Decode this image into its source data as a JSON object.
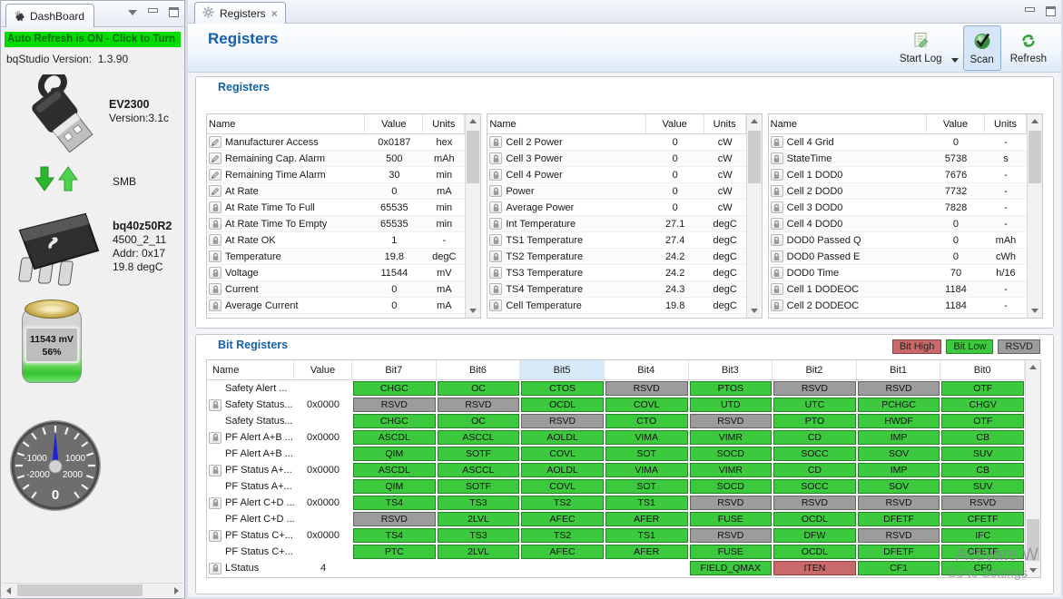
{
  "colors": {
    "accent_blue": "#1461AE",
    "bit_low_green": "#3DC93D",
    "bit_high_red": "#C9696B",
    "bit_rsvd_gray": "#9C9C9C",
    "banner_green": "#00DC00"
  },
  "dashboard": {
    "tab_label": "DashBoard",
    "banner_text": "Auto Refresh is ON - Click to Turn",
    "version_label": "bqStudio Version:",
    "version_value": "1.3.90",
    "adapter_name": "EV2300",
    "adapter_version": "Version:3.1c",
    "bus_label": "SMB",
    "device_name": "bq40z50R2",
    "device_firmware": "4500_2_11",
    "device_address": "Addr: 0x17",
    "device_temp": "19.8 degC",
    "battery_voltage": "11543 mV",
    "battery_soc": "56%",
    "gauge": {
      "labels": [
        "-1000",
        "1000",
        "-2000",
        "2000"
      ],
      "value": "0"
    }
  },
  "main": {
    "tab_label": "Registers",
    "page_title": "Registers",
    "toolbar": {
      "start_log_label": "Start Log",
      "scan_label": "Scan",
      "refresh_label": "Refresh"
    },
    "registers": {
      "section_label": "Registers",
      "columns": [
        "Name",
        "Value",
        "Units"
      ],
      "tables": [
        {
          "rows": [
            {
              "icon": "pencil",
              "name": "Manufacturer Access",
              "value": "0x0187",
              "units": "hex"
            },
            {
              "icon": "pencil",
              "name": "Remaining Cap. Alarm",
              "value": "500",
              "units": "mAh"
            },
            {
              "icon": "pencil",
              "name": "Remaining Time Alarm",
              "value": "30",
              "units": "min"
            },
            {
              "icon": "pencil",
              "name": "At Rate",
              "value": "0",
              "units": "mA"
            },
            {
              "icon": "lock",
              "name": "At Rate Time To Full",
              "value": "65535",
              "units": "min"
            },
            {
              "icon": "lock",
              "name": "At Rate Time To Empty",
              "value": "65535",
              "units": "min"
            },
            {
              "icon": "lock",
              "name": "At Rate OK",
              "value": "1",
              "units": "-"
            },
            {
              "icon": "lock",
              "name": "Temperature",
              "value": "19.8",
              "units": "degC"
            },
            {
              "icon": "lock",
              "name": "Voltage",
              "value": "11544",
              "units": "mV"
            },
            {
              "icon": "lock",
              "name": "Current",
              "value": "0",
              "units": "mA"
            },
            {
              "icon": "lock",
              "name": "Average Current",
              "value": "0",
              "units": "mA"
            }
          ]
        },
        {
          "rows": [
            {
              "icon": "lock",
              "name": "Cell 2 Power",
              "value": "0",
              "units": "cW"
            },
            {
              "icon": "lock",
              "name": "Cell 3 Power",
              "value": "0",
              "units": "cW"
            },
            {
              "icon": "lock",
              "name": "Cell 4 Power",
              "value": "0",
              "units": "cW"
            },
            {
              "icon": "lock",
              "name": "Power",
              "value": "0",
              "units": "cW"
            },
            {
              "icon": "lock",
              "name": "Average Power",
              "value": "0",
              "units": "cW"
            },
            {
              "icon": "lock",
              "name": "Int Temperature",
              "value": "27.1",
              "units": "degC"
            },
            {
              "icon": "lock",
              "name": "TS1 Temperature",
              "value": "27.4",
              "units": "degC"
            },
            {
              "icon": "lock",
              "name": "TS2 Temperature",
              "value": "24.2",
              "units": "degC"
            },
            {
              "icon": "lock",
              "name": "TS3 Temperature",
              "value": "24.2",
              "units": "degC"
            },
            {
              "icon": "lock",
              "name": "TS4 Temperature",
              "value": "24.3",
              "units": "degC"
            },
            {
              "icon": "lock",
              "name": "Cell Temperature",
              "value": "19.8",
              "units": "degC"
            }
          ]
        },
        {
          "rows": [
            {
              "icon": "lock",
              "name": "Cell 4 Grid",
              "value": "0",
              "units": "-"
            },
            {
              "icon": "lock",
              "name": "StateTime",
              "value": "5738",
              "units": "s"
            },
            {
              "icon": "lock",
              "name": "Cell 1 DOD0",
              "value": "7676",
              "units": "-"
            },
            {
              "icon": "lock",
              "name": "Cell 2 DOD0",
              "value": "7732",
              "units": "-"
            },
            {
              "icon": "lock",
              "name": "Cell 3 DOD0",
              "value": "7828",
              "units": "-"
            },
            {
              "icon": "lock",
              "name": "Cell 4 DOD0",
              "value": "0",
              "units": "-"
            },
            {
              "icon": "lock",
              "name": "DOD0 Passed Q",
              "value": "0",
              "units": "mAh"
            },
            {
              "icon": "lock",
              "name": "DOD0 Passed E",
              "value": "0",
              "units": "cWh"
            },
            {
              "icon": "lock",
              "name": "DOD0 Time",
              "value": "70",
              "units": "h/16"
            },
            {
              "icon": "lock",
              "name": "Cell 1 DODEOC",
              "value": "1184",
              "units": "-"
            },
            {
              "icon": "lock",
              "name": "Cell 2 DODEOC",
              "value": "1184",
              "units": "-"
            }
          ]
        }
      ]
    },
    "bit_registers": {
      "section_label": "Bit Registers",
      "legend": [
        {
          "label": "Bit High",
          "state": "high"
        },
        {
          "label": "Bit Low",
          "state": "low"
        },
        {
          "label": "RSVD",
          "state": "rsvd"
        }
      ],
      "columns": [
        "Name",
        "Value",
        "Bit7",
        "Bit6",
        "Bit5",
        "Bit4",
        "Bit3",
        "Bit2",
        "Bit1",
        "Bit0"
      ],
      "selected_column": "Bit5",
      "rows": [
        {
          "icon": "",
          "name": "Safety Alert ...",
          "value": "",
          "bits": [
            {
              "t": "CHGC",
              "s": "low"
            },
            {
              "t": "OC",
              "s": "low"
            },
            {
              "t": "CTOS",
              "s": "low"
            },
            {
              "t": "RSVD",
              "s": "rsvd"
            },
            {
              "t": "PTOS",
              "s": "low"
            },
            {
              "t": "RSVD",
              "s": "rsvd"
            },
            {
              "t": "RSVD",
              "s": "rsvd"
            },
            {
              "t": "OTF",
              "s": "low"
            }
          ]
        },
        {
          "icon": "lock",
          "name": "Safety Status...",
          "value": "0x0000",
          "bits": [
            {
              "t": "RSVD",
              "s": "rsvd"
            },
            {
              "t": "RSVD",
              "s": "rsvd"
            },
            {
              "t": "OCDL",
              "s": "low"
            },
            {
              "t": "COVL",
              "s": "low"
            },
            {
              "t": "UTD",
              "s": "low"
            },
            {
              "t": "UTC",
              "s": "low"
            },
            {
              "t": "PCHGC",
              "s": "low"
            },
            {
              "t": "CHGV",
              "s": "low"
            }
          ]
        },
        {
          "icon": "",
          "name": "Safety Status...",
          "value": "",
          "bits": [
            {
              "t": "CHGC",
              "s": "low"
            },
            {
              "t": "OC",
              "s": "low"
            },
            {
              "t": "RSVD",
              "s": "rsvd"
            },
            {
              "t": "CTO",
              "s": "low"
            },
            {
              "t": "RSVD",
              "s": "rsvd"
            },
            {
              "t": "PTO",
              "s": "low"
            },
            {
              "t": "HWDF",
              "s": "low"
            },
            {
              "t": "OTF",
              "s": "low"
            }
          ]
        },
        {
          "icon": "lock",
          "name": "PF Alert A+B ...",
          "value": "0x0000",
          "bits": [
            {
              "t": "ASCDL",
              "s": "low"
            },
            {
              "t": "ASCCL",
              "s": "low"
            },
            {
              "t": "AOLDL",
              "s": "low"
            },
            {
              "t": "VIMA",
              "s": "low"
            },
            {
              "t": "VIMR",
              "s": "low"
            },
            {
              "t": "CD",
              "s": "low"
            },
            {
              "t": "IMP",
              "s": "low"
            },
            {
              "t": "CB",
              "s": "low"
            }
          ]
        },
        {
          "icon": "",
          "name": "PF Alert A+B ...",
          "value": "",
          "bits": [
            {
              "t": "QIM",
              "s": "low"
            },
            {
              "t": "SOTF",
              "s": "low"
            },
            {
              "t": "COVL",
              "s": "low"
            },
            {
              "t": "SOT",
              "s": "low"
            },
            {
              "t": "SOCD",
              "s": "low"
            },
            {
              "t": "SOCC",
              "s": "low"
            },
            {
              "t": "SOV",
              "s": "low"
            },
            {
              "t": "SUV",
              "s": "low"
            }
          ]
        },
        {
          "icon": "lock",
          "name": "PF Status A+...",
          "value": "0x0000",
          "bits": [
            {
              "t": "ASCDL",
              "s": "low"
            },
            {
              "t": "ASCCL",
              "s": "low"
            },
            {
              "t": "AOLDL",
              "s": "low"
            },
            {
              "t": "VIMA",
              "s": "low"
            },
            {
              "t": "VIMR",
              "s": "low"
            },
            {
              "t": "CD",
              "s": "low"
            },
            {
              "t": "IMP",
              "s": "low"
            },
            {
              "t": "CB",
              "s": "low"
            }
          ]
        },
        {
          "icon": "",
          "name": "PF Status A+...",
          "value": "",
          "bits": [
            {
              "t": "QIM",
              "s": "low"
            },
            {
              "t": "SOTF",
              "s": "low"
            },
            {
              "t": "COVL",
              "s": "low"
            },
            {
              "t": "SOT",
              "s": "low"
            },
            {
              "t": "SOCD",
              "s": "low"
            },
            {
              "t": "SOCC",
              "s": "low"
            },
            {
              "t": "SOV",
              "s": "low"
            },
            {
              "t": "SUV",
              "s": "low"
            }
          ]
        },
        {
          "icon": "lock",
          "name": "PF Alert C+D ...",
          "value": "0x0000",
          "bits": [
            {
              "t": "TS4",
              "s": "low"
            },
            {
              "t": "TS3",
              "s": "low"
            },
            {
              "t": "TS2",
              "s": "low"
            },
            {
              "t": "TS1",
              "s": "low"
            },
            {
              "t": "RSVD",
              "s": "rsvd"
            },
            {
              "t": "RSVD",
              "s": "rsvd"
            },
            {
              "t": "RSVD",
              "s": "rsvd"
            },
            {
              "t": "RSVD",
              "s": "rsvd"
            }
          ]
        },
        {
          "icon": "",
          "name": "PF Alert C+D ...",
          "value": "",
          "bits": [
            {
              "t": "RSVD",
              "s": "rsvd"
            },
            {
              "t": "2LVL",
              "s": "low"
            },
            {
              "t": "AFEC",
              "s": "low"
            },
            {
              "t": "AFER",
              "s": "low"
            },
            {
              "t": "FUSE",
              "s": "low"
            },
            {
              "t": "OCDL",
              "s": "low"
            },
            {
              "t": "DFETF",
              "s": "low"
            },
            {
              "t": "CFETF",
              "s": "low"
            }
          ]
        },
        {
          "icon": "lock",
          "name": "PF Status C+...",
          "value": "0x0000",
          "bits": [
            {
              "t": "TS4",
              "s": "low"
            },
            {
              "t": "TS3",
              "s": "low"
            },
            {
              "t": "TS2",
              "s": "low"
            },
            {
              "t": "TS1",
              "s": "low"
            },
            {
              "t": "RSVD",
              "s": "rsvd"
            },
            {
              "t": "DFW",
              "s": "low"
            },
            {
              "t": "RSVD",
              "s": "rsvd"
            },
            {
              "t": "IFC",
              "s": "low"
            }
          ]
        },
        {
          "icon": "",
          "name": "PF Status C+...",
          "value": "",
          "bits": [
            {
              "t": "PTC",
              "s": "low"
            },
            {
              "t": "2LVL",
              "s": "low"
            },
            {
              "t": "AFEC",
              "s": "low"
            },
            {
              "t": "AFER",
              "s": "low"
            },
            {
              "t": "FUSE",
              "s": "low"
            },
            {
              "t": "OCDL",
              "s": "low"
            },
            {
              "t": "DFETF",
              "s": "low"
            },
            {
              "t": "CFETF",
              "s": "low"
            }
          ]
        },
        {
          "icon": "lock",
          "name": "LStatus",
          "value": "4",
          "bits": [
            {
              "t": "",
              "s": "none"
            },
            {
              "t": "",
              "s": "none"
            },
            {
              "t": "",
              "s": "none"
            },
            {
              "t": "",
              "s": "none"
            },
            {
              "t": "FIELD_QMAX",
              "s": "low"
            },
            {
              "t": "ITEN",
              "s": "high"
            },
            {
              "t": "CF1",
              "s": "low"
            },
            {
              "t": "CF0",
              "s": "low"
            }
          ]
        }
      ]
    }
  },
  "watermark": {
    "line1": "Activate W",
    "line2": "Go to Settings"
  }
}
